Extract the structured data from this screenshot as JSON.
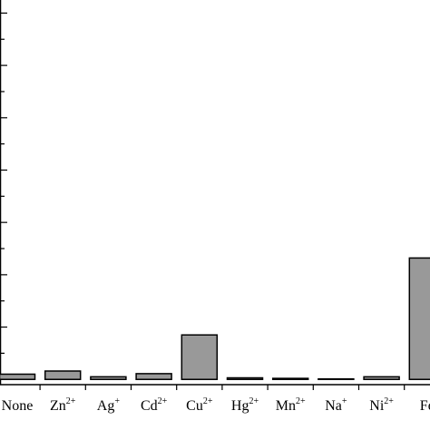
{
  "chart_data": {
    "type": "bar",
    "categories": [
      {
        "base": "None",
        "sup": ""
      },
      {
        "base": "Zn",
        "sup": "2+"
      },
      {
        "base": "Ag",
        "sup": "+"
      },
      {
        "base": "Cd",
        "sup": "2+"
      },
      {
        "base": "Cu",
        "sup": "2+"
      },
      {
        "base": "Hg",
        "sup": "2+"
      },
      {
        "base": "Mn",
        "sup": "2+"
      },
      {
        "base": "Na",
        "sup": "+"
      },
      {
        "base": "Ni",
        "sup": "2+"
      },
      {
        "base": "Fe",
        "sup": ""
      }
    ],
    "values": [
      0.1,
      0.16,
      0.05,
      0.11,
      0.85,
      0.03,
      0.02,
      0.01,
      0.05,
      2.32
    ],
    "ylim": [
      -0.1,
      7.25
    ],
    "y_major_step": 1,
    "grid": false,
    "legend": "none",
    "title": "",
    "xlabel": "",
    "ylabel": "",
    "bar_fill": "#999999",
    "bar_stroke": "#000000"
  }
}
